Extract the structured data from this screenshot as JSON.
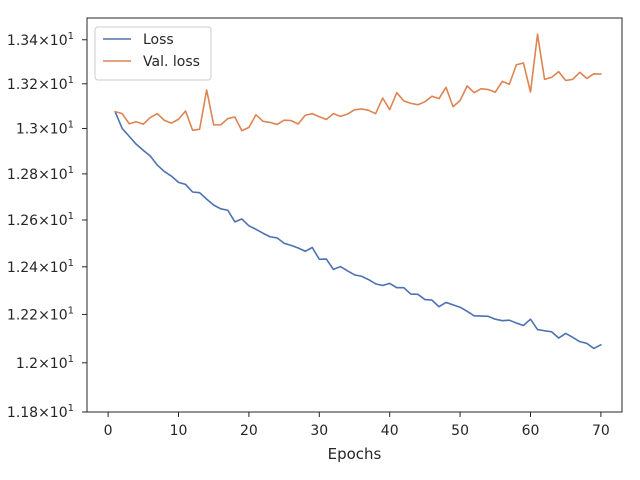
{
  "chart_data": {
    "type": "line",
    "title": "",
    "xlabel": "Epochs",
    "ylabel": "",
    "yscale": "log",
    "xlim": [
      -3,
      73
    ],
    "ylim": [
      11.8,
      13.5
    ],
    "grid": false,
    "legend_position": "top-left",
    "x_ticks": [
      0,
      10,
      20,
      30,
      40,
      50,
      60,
      70
    ],
    "x_tick_labels": [
      "0",
      "10",
      "20",
      "30",
      "40",
      "50",
      "60",
      "70"
    ],
    "y_ticks": [
      11.8,
      12.0,
      12.2,
      12.4,
      12.6,
      12.8,
      13.0,
      13.2,
      13.4
    ],
    "y_tick_labels": [
      "1.18×10",
      "1.2×10",
      "1.22×10",
      "1.24×10",
      "1.26×10",
      "1.28×10",
      "1.3×10",
      "1.32×10",
      "1.34×10"
    ],
    "y_tick_exponent": "1",
    "x": [
      1,
      2,
      3,
      4,
      5,
      6,
      7,
      8,
      9,
      10,
      11,
      12,
      13,
      14,
      15,
      16,
      17,
      18,
      19,
      20,
      21,
      22,
      23,
      24,
      25,
      26,
      27,
      28,
      29,
      30,
      31,
      32,
      33,
      34,
      35,
      36,
      37,
      38,
      39,
      40,
      41,
      42,
      43,
      44,
      45,
      46,
      47,
      48,
      49,
      50,
      51,
      52,
      53,
      54,
      55,
      56,
      57,
      58,
      59,
      60,
      61,
      62,
      63,
      64,
      65,
      66,
      67,
      68,
      69,
      70
    ],
    "series": [
      {
        "name": "Loss",
        "color": "#4c72b0",
        "values": [
          13.074,
          13.0,
          12.965,
          12.93,
          12.903,
          12.878,
          12.838,
          12.81,
          12.79,
          12.763,
          12.754,
          12.721,
          12.718,
          12.69,
          12.664,
          12.648,
          12.642,
          12.592,
          12.604,
          12.575,
          12.56,
          12.543,
          12.528,
          12.523,
          12.5,
          12.491,
          12.48,
          12.466,
          12.482,
          12.432,
          12.433,
          12.389,
          12.401,
          12.383,
          12.366,
          12.36,
          12.346,
          12.328,
          12.321,
          12.33,
          12.312,
          12.312,
          12.285,
          12.284,
          12.262,
          12.26,
          12.232,
          12.25,
          12.24,
          12.23,
          12.213,
          12.194,
          12.193,
          12.192,
          12.18,
          12.174,
          12.176,
          12.164,
          12.154,
          12.18,
          12.137,
          12.132,
          12.128,
          12.102,
          12.121,
          12.105,
          12.087,
          12.08,
          12.059,
          12.074
        ]
      },
      {
        "name": "Val. loss",
        "color": "#dd8452",
        "values": [
          13.075,
          13.066,
          13.021,
          13.03,
          13.019,
          13.049,
          13.066,
          13.036,
          13.024,
          13.041,
          13.078,
          12.992,
          12.997,
          13.172,
          13.016,
          13.016,
          13.044,
          13.051,
          12.99,
          13.005,
          13.061,
          13.032,
          13.027,
          13.018,
          13.037,
          13.035,
          13.02,
          13.059,
          13.066,
          13.052,
          13.04,
          13.066,
          13.054,
          13.064,
          13.083,
          13.087,
          13.081,
          13.066,
          13.136,
          13.084,
          13.16,
          13.123,
          13.112,
          13.106,
          13.119,
          13.144,
          13.133,
          13.184,
          13.097,
          13.125,
          13.19,
          13.16,
          13.178,
          13.174,
          13.162,
          13.211,
          13.198,
          13.286,
          13.294,
          13.163,
          13.425,
          13.22,
          13.229,
          13.255,
          13.215,
          13.22,
          13.252,
          13.224,
          13.245,
          13.244
        ]
      }
    ]
  }
}
